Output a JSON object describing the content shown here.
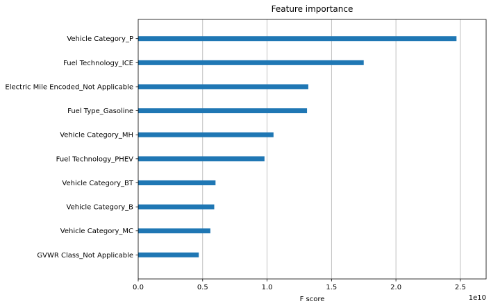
{
  "chart_data": {
    "type": "bar",
    "orientation": "horizontal",
    "title": "Feature importance",
    "xlabel": "F score",
    "ylabel": "",
    "x_scale_label": "1e10",
    "xlim": [
      0,
      2.7
    ],
    "x_ticks": [
      0,
      0.5,
      1.0,
      1.5,
      2.0,
      2.5
    ],
    "x_tick_labels": [
      "0.0",
      "0.5",
      "1.0",
      "1.5",
      "2.0",
      "2.5"
    ],
    "grid": "vertical",
    "bar_color": "#1f77b4",
    "categories": [
      "Vehicle Category_P",
      "Fuel Technology_ICE",
      "Electric Mile Encoded_Not Applicable",
      "Fuel Type_Gasoline",
      "Vehicle Category_MH",
      "Fuel Technology_PHEV",
      "Vehicle Category_BT",
      "Vehicle Category_B",
      "Vehicle Category_MC",
      "GVWR Class_Not Applicable"
    ],
    "values": [
      2.47,
      1.75,
      1.32,
      1.31,
      1.05,
      0.98,
      0.6,
      0.59,
      0.56,
      0.47
    ]
  }
}
